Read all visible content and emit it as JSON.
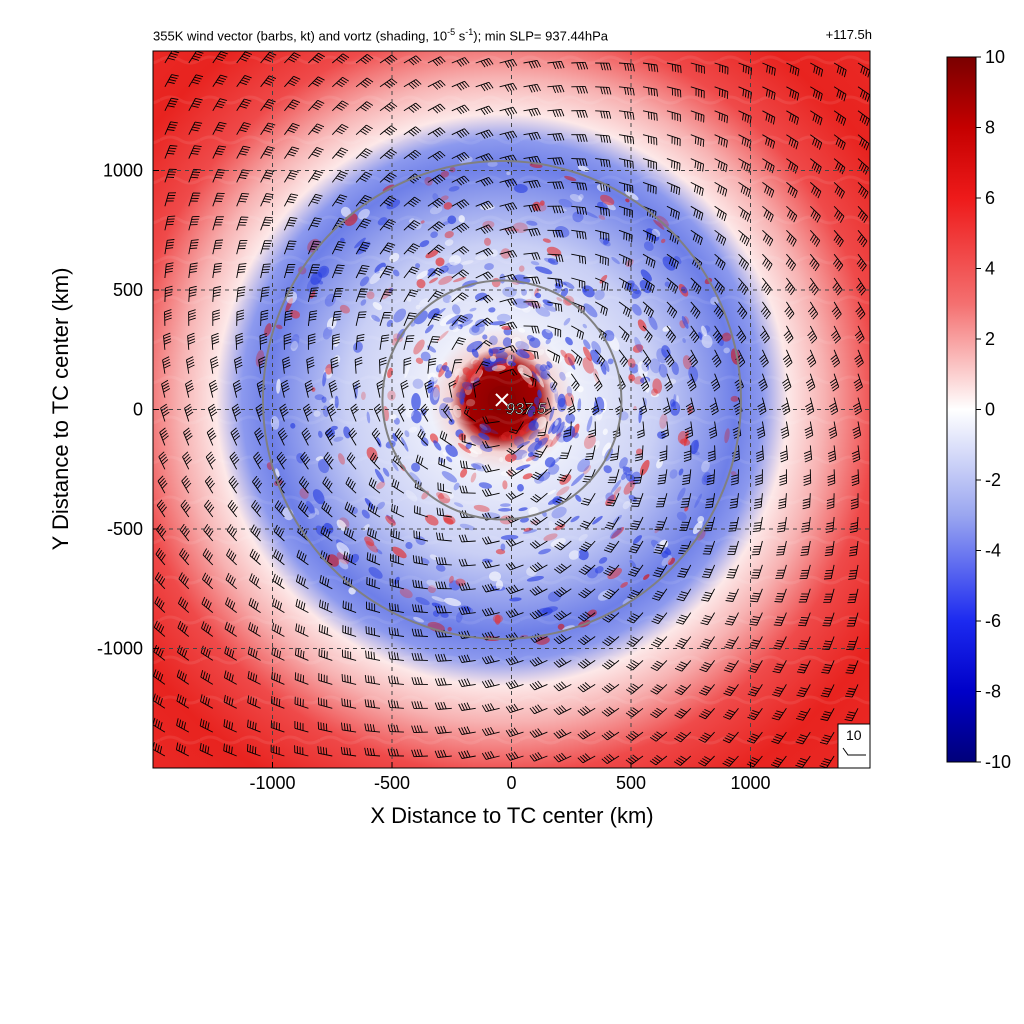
{
  "figure": {
    "title_left_a": "355K wind vector (barbs, kt) and vortz (shading, 10",
    "title_left_exp1": "-5",
    "title_left_b": " s",
    "title_left_exp2": "-1",
    "title_left_c": "); min SLP= 937.44hPa",
    "title_right": "+117.5h",
    "center_label": "937.5",
    "reference_barb_label": "10"
  },
  "colors": {
    "strong_pos": "#7a0000",
    "pos": "#e8211f",
    "zero": "#ffffff",
    "neg": "#2d45d8",
    "strong_neg": "#00007a",
    "rings": "#808080",
    "grid": "#444444"
  },
  "chart_data": {
    "type": "heatmap",
    "xlabel": "X Distance to TC center (km)",
    "ylabel": "Y Distance to TC center (km)",
    "xlim": [
      -1500,
      1500
    ],
    "ylim": [
      -1500,
      1500
    ],
    "xticks": [
      -1000,
      -500,
      0,
      500,
      1000
    ],
    "yticks": [
      -1000,
      -500,
      0,
      500,
      1000
    ],
    "tick_labels_x": [
      "-1000",
      "-500",
      "0",
      "500",
      "1000"
    ],
    "tick_labels_y": [
      "-1000",
      "-500",
      "0",
      "500",
      "1000"
    ],
    "grid": true,
    "colorbar": {
      "range": [
        -10,
        10
      ],
      "ticks": [
        10,
        8,
        6,
        4,
        2,
        0,
        -2,
        -4,
        -6,
        -8,
        -10
      ],
      "tick_labels": [
        "10",
        "8",
        "6",
        "4",
        "2",
        "0",
        "-2",
        "-4",
        "-6",
        "-8",
        "-10"
      ],
      "position": "right"
    },
    "center": {
      "x": -40,
      "y": 40,
      "min_slp_hpa": 937.5
    },
    "range_rings_km": [
      500,
      1000
    ],
    "vorticity_field_zones": [
      {
        "r_from_km": 0,
        "r_to_km": 120,
        "vortz": 10
      },
      {
        "r_from_km": 120,
        "r_to_km": 500,
        "vortz": -3
      },
      {
        "r_from_km": 500,
        "r_to_km": 950,
        "vortz": -5
      },
      {
        "r_from_km": 950,
        "r_to_km": 1150,
        "vortz": 1
      },
      {
        "r_from_km": 1150,
        "r_to_km": 2200,
        "vortz": 6
      }
    ],
    "wind_barb_spacing_km": 100,
    "reference_barb_kt": 10
  }
}
